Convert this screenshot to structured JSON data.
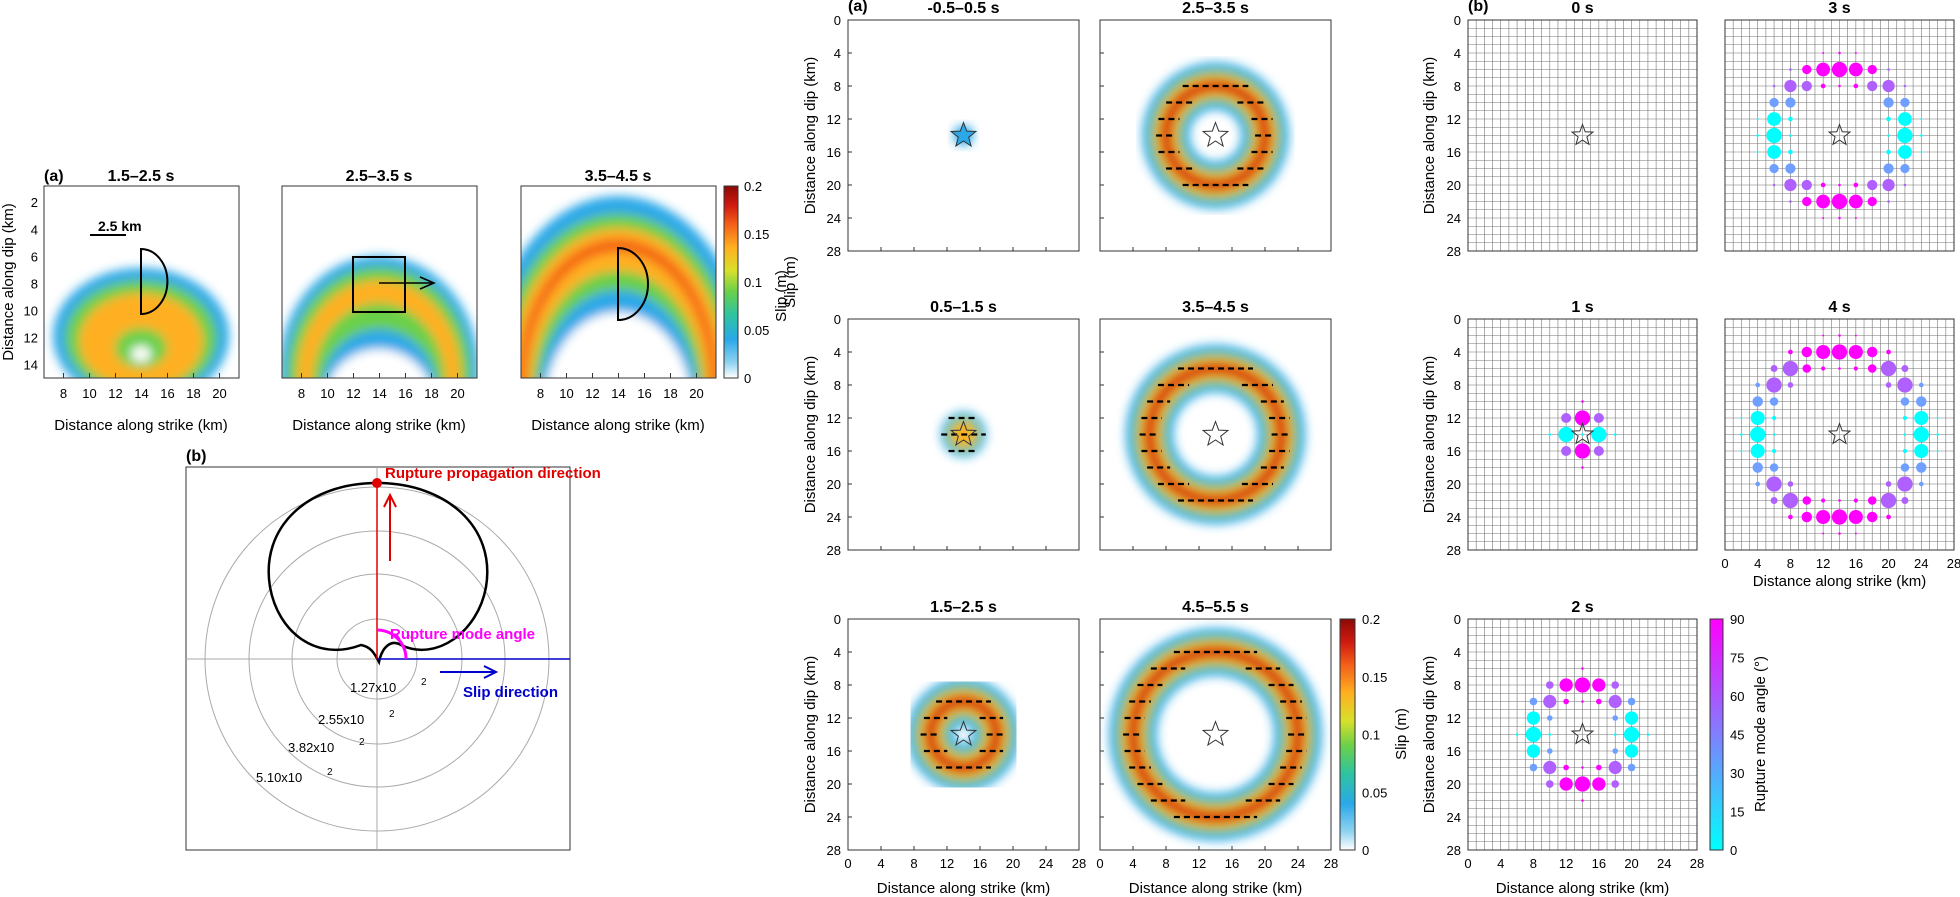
{
  "colors": {
    "slip_colormap": [
      "#ffffff",
      "#8fd3f0",
      "#2aa8e8",
      "#2ec4a0",
      "#6ad04a",
      "#d8e02a",
      "#ffb020",
      "#f46018",
      "#d01a10",
      "#8a0a06"
    ],
    "mode_colormap": [
      "#00ffff",
      "#8080ff",
      "#c040ff",
      "#ff00ff"
    ],
    "rupture_propagation": "#e00000",
    "rupture_mode_angle": "#ff00ff",
    "slip_direction": "#0000cc"
  },
  "left": {
    "a_label": "(a)",
    "b_label": "(b)",
    "panels": [
      {
        "title": "1.5–2.5 s"
      },
      {
        "title": "2.5–3.5 s"
      },
      {
        "title": "3.5–4.5 s"
      }
    ],
    "scale_bar": "2.5 km",
    "x_ticks": [
      "8",
      "10",
      "12",
      "14",
      "16",
      "18",
      "20"
    ],
    "y_ticks": [
      "2",
      "4",
      "6",
      "8",
      "10",
      "12",
      "14"
    ],
    "xlabel": "Distance along strike (km)",
    "ylabel": "Distance along dip (km)",
    "colorbar": {
      "ticks": [
        "0.2",
        "0.15",
        "0.1",
        "0.05",
        "0"
      ],
      "label": "Slip (m)"
    },
    "polar": {
      "propagation_label": "Rupture propagation direction",
      "mode_label": "Rupture mode angle",
      "slip_label": "Slip direction",
      "rings": [
        "1.27x10",
        "2.55x10",
        "3.82x10",
        "5.10x10"
      ],
      "ring_exponent": "2"
    }
  },
  "middle": {
    "a_label": "(a)",
    "panels": [
      {
        "title": "-0.5–0.5 s",
        "radius": 0
      },
      {
        "title": "2.5–3.5 s",
        "radius": 6
      },
      {
        "title": "0.5–1.5 s",
        "radius": 1.5
      },
      {
        "title": "3.5–4.5 s",
        "radius": 8
      },
      {
        "title": "1.5–2.5 s",
        "radius": 4
      },
      {
        "title": "4.5–5.5 s",
        "radius": 10
      }
    ],
    "ticks": [
      "0",
      "4",
      "8",
      "12",
      "16",
      "20",
      "24",
      "28"
    ],
    "xlabel": "Distance along strike (km)",
    "ylabel": "Distance along dip (km)",
    "colorbar": {
      "ticks": [
        "0.2",
        "0.15",
        "0.1",
        "0.05",
        "0"
      ],
      "label": "Slip (m)"
    }
  },
  "right": {
    "b_label": "(b)",
    "panels": [
      {
        "title": "0 s",
        "radius": 0
      },
      {
        "title": "3 s",
        "radius": 8
      },
      {
        "title": "1 s",
        "radius": 2
      },
      {
        "title": "4 s",
        "radius": 10
      },
      {
        "title": "2 s",
        "radius": 6
      }
    ],
    "x_ticks": [
      "0",
      "4",
      "8",
      "12",
      "16",
      "20",
      "24",
      "28"
    ],
    "y_ticks": [
      "0",
      "4",
      "8",
      "12",
      "16",
      "20",
      "24",
      "28"
    ],
    "xlabel": "Distance along strike (km)",
    "ylabel": "Distance along dip (km)",
    "colorbar": {
      "ticks": [
        "90",
        "75",
        "60",
        "45",
        "30",
        "15",
        "0"
      ],
      "label": "Rupture mode angle (°)"
    }
  }
}
